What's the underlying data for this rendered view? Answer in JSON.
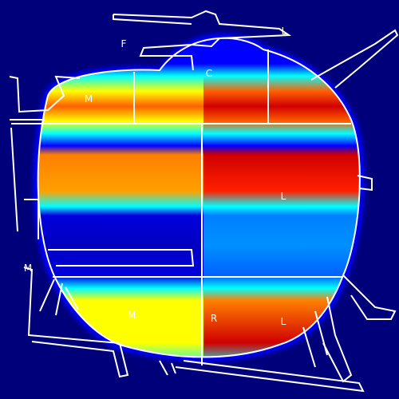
{
  "colors": {
    "background": "#00007a",
    "outline": "#ffffff",
    "scale": [
      "#00007a",
      "#0000ff",
      "#0080ff",
      "#00ffff",
      "#ffff00",
      "#ff8000",
      "#ff0000",
      "#b00000"
    ]
  },
  "labels": {
    "f": "F",
    "c": "C",
    "l_top": "L",
    "m_upper": "M",
    "l_right": "L",
    "m_side": "M",
    "m_bottom": "M",
    "r_bottom": "R",
    "l_bottom": "L"
  }
}
